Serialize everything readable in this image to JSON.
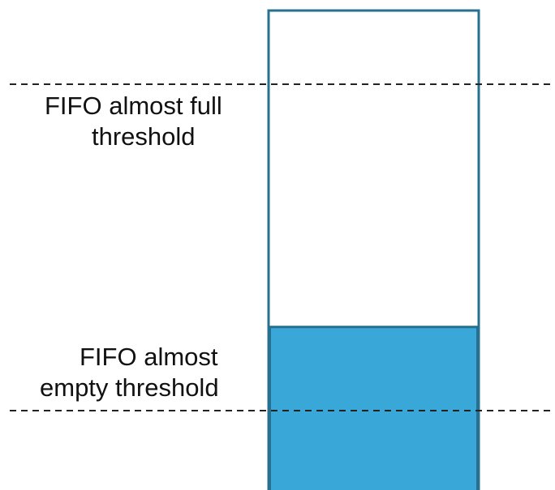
{
  "labels": {
    "almost_full": [
      "FIFO almost full",
      "threshold"
    ],
    "almost_empty": [
      "FIFO almost",
      "empty threshold"
    ]
  },
  "fifo": {
    "fill_level": 0.34,
    "fill_color": "#3aa7d9",
    "border_color": "#27708f"
  },
  "threshold_line_color": "#222222"
}
